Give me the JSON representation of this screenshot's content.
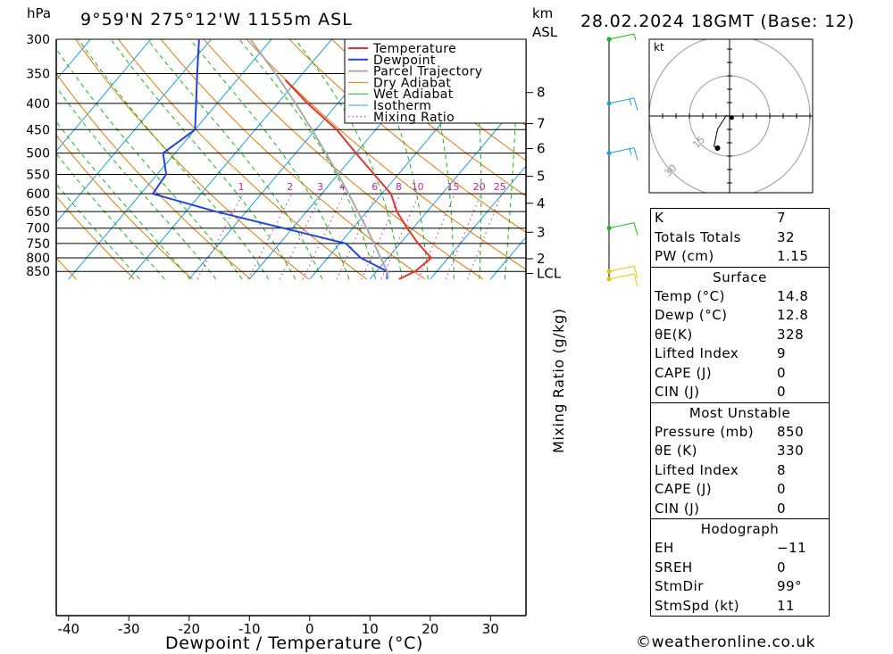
{
  "header": {
    "hpa_unit": "hPa",
    "location": "9°59'N  275°12'W  1155m  ASL",
    "km_unit": "km",
    "asl_unit": "ASL",
    "datetime": "28.02.2024  18GMT  (Base: 12)"
  },
  "chart_data": {
    "type": "line",
    "title": "9°59'N  275°12'W  1155m  ASL",
    "xlabel": "Dewpoint / Temperature (°C)",
    "ylabel": "hPa",
    "xlim": [
      -43,
      37
    ],
    "ylim": [
      880,
      300
    ],
    "y_log_scale": true,
    "skew_deg_per_log10p": 72,
    "pressure_ticks": [
      300,
      350,
      400,
      450,
      500,
      550,
      600,
      650,
      700,
      750,
      800,
      850
    ],
    "temp_ticks": [
      -40,
      -30,
      -20,
      -10,
      0,
      10,
      20,
      30
    ],
    "km_ticks": [
      {
        "label": "8",
        "p": 381
      },
      {
        "label": "7",
        "p": 438
      },
      {
        "label": "6",
        "p": 490
      },
      {
        "label": "5",
        "p": 555
      },
      {
        "label": "4",
        "p": 626
      },
      {
        "label": "3",
        "p": 713
      },
      {
        "label": "2",
        "p": 803
      },
      {
        "label": "LCL",
        "p": 858
      }
    ],
    "mixing_ratio_label": "Mixing Ratio (g/kg)",
    "mixing_ratio_values": [
      1,
      2,
      3,
      4,
      6,
      8,
      10,
      15,
      20,
      25
    ],
    "series": [
      {
        "name": "Temperature",
        "color": "#e8312a",
        "points": [
          [
            880,
            14.8
          ],
          [
            850,
            16.4
          ],
          [
            800,
            17.2
          ],
          [
            750,
            13.0
          ],
          [
            700,
            9.0
          ],
          [
            650,
            5.0
          ],
          [
            600,
            1.5
          ],
          [
            550,
            -4.0
          ],
          [
            500,
            -10.0
          ],
          [
            450,
            -16.5
          ],
          [
            400,
            -25.0
          ],
          [
            360,
            -32.0
          ]
        ]
      },
      {
        "name": "Dewpoint",
        "color": "#2244dd",
        "points": [
          [
            880,
            12.8
          ],
          [
            850,
            11.8
          ],
          [
            800,
            5.5
          ],
          [
            750,
            1.0
          ],
          [
            700,
            -11.5
          ],
          [
            650,
            -25.0
          ],
          [
            600,
            -38.0
          ],
          [
            550,
            -38.5
          ],
          [
            500,
            -42.0
          ],
          [
            450,
            -40.0
          ],
          [
            400,
            -43.5
          ],
          [
            350,
            -47.5
          ],
          [
            300,
            -52.0
          ]
        ]
      },
      {
        "name": "Parcel Trajectory",
        "color": "#aaaaaa",
        "points": [
          [
            880,
            13.0
          ],
          [
            850,
            11.8
          ],
          [
            800,
            8.8
          ],
          [
            750,
            5.7
          ],
          [
            700,
            2.3
          ],
          [
            650,
            -1.5
          ],
          [
            600,
            -5.5
          ],
          [
            550,
            -10.0
          ],
          [
            500,
            -15.0
          ],
          [
            450,
            -20.6
          ],
          [
            400,
            -27.0
          ],
          [
            350,
            -34.5
          ],
          [
            300,
            -43.5
          ]
        ]
      }
    ],
    "legend": [
      "Temperature",
      "Dewpoint",
      "Parcel Trajectory",
      "Dry Adiabat",
      "Wet Adiabat",
      "Isotherm",
      "Mixing Ratio"
    ],
    "legend_position": "top-right",
    "colors": {
      "dry_adiabat": "#e07b00",
      "wet_adiabat": "#14b814",
      "isotherm": "#1ea0e0",
      "mixing_ratio": "#cc1f9e"
    },
    "wind_profile": [
      {
        "p": 300,
        "speed_kt": 5,
        "color": "#14b814"
      },
      {
        "p": 400,
        "speed_kt": 15,
        "color": "#1ea0e0"
      },
      {
        "p": 500,
        "speed_kt": 15,
        "color": "#1ea0e0"
      },
      {
        "p": 700,
        "speed_kt": 10,
        "color": "#14b814"
      },
      {
        "p": 850,
        "speed_kt": 10,
        "color": "#e0c800"
      },
      {
        "p": 880,
        "speed_kt": 10,
        "color": "#e0c800"
      }
    ],
    "hodograph": {
      "unit": "kt",
      "rings": [
        15,
        30,
        45
      ],
      "points": [
        [
          0.8,
          -0.6
        ],
        [
          -1.2,
          0.2
        ],
        [
          -2.3,
          -1.5
        ],
        [
          -4.5,
          -5.0
        ],
        [
          -5.8,
          -11.3
        ],
        [
          -4.5,
          -12.0
        ]
      ]
    }
  },
  "table": {
    "basic": [
      {
        "k": "K",
        "v": "7"
      },
      {
        "k": "Totals Totals",
        "v": "32"
      },
      {
        "k": "PW (cm)",
        "v": "1.15"
      }
    ],
    "surface": {
      "title": "Surface",
      "rows": [
        {
          "k": "Temp (°C)",
          "v": "14.8"
        },
        {
          "k": "Dewp (°C)",
          "v": "12.8"
        },
        {
          "k": "θE(K)",
          "v": "328"
        },
        {
          "k": "Lifted Index",
          "v": "9"
        },
        {
          "k": "CAPE (J)",
          "v": "0"
        },
        {
          "k": "CIN (J)",
          "v": "0"
        }
      ]
    },
    "most_unstable": {
      "title": "Most Unstable",
      "rows": [
        {
          "k": "Pressure (mb)",
          "v": "850"
        },
        {
          "k": "θE (K)",
          "v": "330"
        },
        {
          "k": "Lifted Index",
          "v": "8"
        },
        {
          "k": "CAPE (J)",
          "v": "0"
        },
        {
          "k": "CIN (J)",
          "v": "0"
        }
      ]
    },
    "hodograph": {
      "title": "Hodograph",
      "rows": [
        {
          "k": "EH",
          "v": "−11"
        },
        {
          "k": "SREH",
          "v": "0"
        },
        {
          "k": "StmDir",
          "v": "99°"
        },
        {
          "k": "StmSpd (kt)",
          "v": "11"
        }
      ]
    }
  },
  "footer": {
    "copyright": "©weatheronline.co.uk"
  }
}
